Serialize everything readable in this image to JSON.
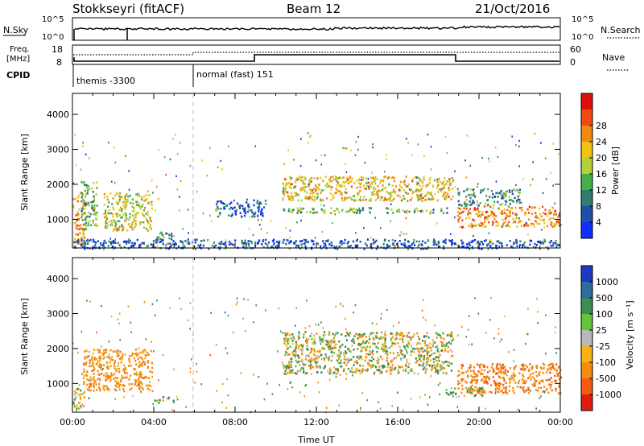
{
  "header": {
    "station": "Stokkseyri (fitACF)",
    "beam": "Beam 12",
    "date": "21/Oct/2016"
  },
  "top_panels": {
    "nsky_label": "N.Sky",
    "nsearch_label": "N.Search",
    "nsky_ticks": [
      "10^5",
      "10^0"
    ],
    "nsearch_ticks": [
      "10^5",
      "10^0"
    ],
    "freq_label_1": "Freq.",
    "freq_label_2": "[MHz]",
    "freq_ticks": [
      "18",
      "8"
    ],
    "nave_label": "Nave",
    "nave_ticks": [
      "60",
      "0"
    ],
    "cpid_label": "CPID",
    "cpid_modes": [
      {
        "label": "themis -3300",
        "start_hour": 0,
        "end_hour": 6
      },
      {
        "label": "normal (fast) 151",
        "start_hour": 6,
        "end_hour": 24
      }
    ]
  },
  "chart_data": [
    {
      "type": "heatmap",
      "name": "power",
      "ylabel": "Slant Range [km]",
      "xlabel": "",
      "x_range_hours": [
        0,
        24
      ],
      "ylim": [
        180,
        4600
      ],
      "y_ticks": [
        1000,
        2000,
        3000,
        4000
      ],
      "colorbar": {
        "label": "Power [dB]",
        "ticks": [
          "4",
          "8",
          "12",
          "16",
          "20",
          "24",
          "28"
        ],
        "colors": [
          "#1030ff",
          "#1f4fa8",
          "#2e7e6b",
          "#46b14a",
          "#b3d23a",
          "#f2c313",
          "#f08a14",
          "#f04a10",
          "#e00f0f"
        ]
      },
      "regions": [
        {
          "h0": 0.0,
          "h1": 0.6,
          "r0": 300,
          "r1": 1800,
          "value": 26
        },
        {
          "h0": 0.4,
          "h1": 1.2,
          "r0": 700,
          "r1": 2100,
          "value": 14
        },
        {
          "h0": 1.5,
          "h1": 3.9,
          "r0": 700,
          "r1": 1800,
          "value": 20
        },
        {
          "h0": 4.0,
          "h1": 5.0,
          "r0": 450,
          "r1": 650,
          "value": 10
        },
        {
          "h0": 7.0,
          "h1": 9.5,
          "r0": 1100,
          "r1": 1600,
          "value": 6
        },
        {
          "h0": 10.3,
          "h1": 18.7,
          "r0": 1550,
          "r1": 2250,
          "value": 22
        },
        {
          "h0": 10.3,
          "h1": 18.7,
          "r0": 1200,
          "r1": 1350,
          "value": 14
        },
        {
          "h0": 18.9,
          "h1": 24.0,
          "r0": 800,
          "r1": 1400,
          "value": 26
        },
        {
          "h0": 18.9,
          "h1": 22.0,
          "r0": 1400,
          "r1": 1900,
          "value": 12
        },
        {
          "h0": 0.0,
          "h1": 24.0,
          "r0": 180,
          "r1": 450,
          "value": 6
        }
      ]
    },
    {
      "type": "heatmap",
      "name": "velocity",
      "ylabel": "Slant Range [km]",
      "xlabel": "Time UT",
      "x_range_hours": [
        0,
        24
      ],
      "x_ticks": [
        "00:00",
        "04:00",
        "08:00",
        "12:00",
        "16:00",
        "20:00",
        "00:00"
      ],
      "ylim": [
        180,
        4600
      ],
      "y_ticks": [
        1000,
        2000,
        3000,
        4000
      ],
      "colorbar": {
        "label": "Velocity [m s⁻¹]",
        "ticks": [
          "1000",
          "500",
          "100",
          "25",
          "-25",
          "-100",
          "-500",
          "-1000"
        ],
        "colors": [
          "#1d39c4",
          "#2b6d9c",
          "#3a8d55",
          "#62c43a",
          "#b8b8b8",
          "#f6b213",
          "#f58c12",
          "#f25b10",
          "#e01c10"
        ]
      },
      "regions": [
        {
          "h0": 0.0,
          "h1": 0.6,
          "r0": 300,
          "r1": 900,
          "value": 0
        },
        {
          "h0": 0.5,
          "h1": 3.9,
          "r0": 800,
          "r1": 2000,
          "value": -300
        },
        {
          "h0": 4.0,
          "h1": 5.0,
          "r0": 450,
          "r1": 650,
          "value": 50
        },
        {
          "h0": 10.3,
          "h1": 18.7,
          "r0": 1300,
          "r1": 2500,
          "value": 0
        },
        {
          "h0": 18.9,
          "h1": 24.0,
          "r0": 750,
          "r1": 1600,
          "value": -400
        },
        {
          "h0": 18.3,
          "h1": 20.2,
          "r0": 650,
          "r1": 900,
          "value": 150
        }
      ]
    }
  ]
}
